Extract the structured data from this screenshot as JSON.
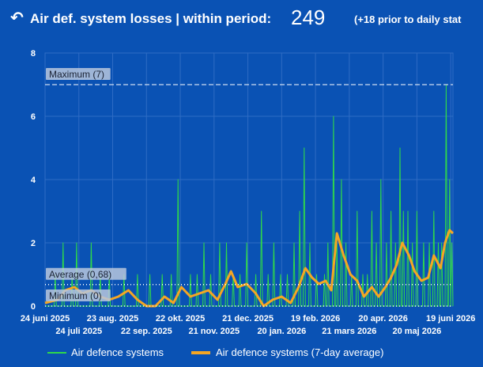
{
  "header": {
    "back_icon": "↶",
    "title": "Air def. system losses | within period:",
    "total": "249",
    "prior_note": "(+18 prior to daily stat"
  },
  "colors": {
    "background": "#0a52b4",
    "daily_line": "#2fd84a",
    "avg_line": "#f5a623",
    "grid": "#2f6cc4"
  },
  "chart_data": {
    "type": "line",
    "x_start": "2025-06-24",
    "x_end": "2026-06-21",
    "y_range": [
      0,
      8
    ],
    "y_ticks": [
      "0",
      "2",
      "4",
      "6",
      "8"
    ],
    "x_ticks_upper": [
      {
        "date": "2025-06-24",
        "label": "24 juni 2025"
      },
      {
        "date": "2025-08-23",
        "label": "23 aug. 2025"
      },
      {
        "date": "2025-10-22",
        "label": "22 okt. 2025"
      },
      {
        "date": "2025-12-21",
        "label": "21 dec. 2025"
      },
      {
        "date": "2026-02-19",
        "label": "19 feb. 2026"
      },
      {
        "date": "2026-04-20",
        "label": "20 apr. 2026"
      },
      {
        "date": "2026-06-19",
        "label": "19 juni 2026"
      }
    ],
    "x_ticks_lower": [
      {
        "date": "2025-07-24",
        "label": "24 juli 2025"
      },
      {
        "date": "2025-09-22",
        "label": "22 sep. 2025"
      },
      {
        "date": "2025-11-21",
        "label": "21 nov. 2025"
      },
      {
        "date": "2026-01-20",
        "label": "20 jan. 2026"
      },
      {
        "date": "2026-03-21",
        "label": "21 mars 2026"
      },
      {
        "date": "2026-05-20",
        "label": "20 maj 2026"
      }
    ],
    "reference_lines": [
      {
        "label": "Maximum (7)",
        "value": 7,
        "style": "dashed"
      },
      {
        "label": "Average (0,68)",
        "value": 0.68,
        "style": "dotted"
      },
      {
        "label": "Minimum (0)",
        "value": 0,
        "style": "dotted"
      }
    ],
    "series": [
      {
        "name": "Air defence systems",
        "points": [
          [
            "2025-07-03",
            1
          ],
          [
            "2025-07-10",
            2
          ],
          [
            "2025-07-18",
            1
          ],
          [
            "2025-07-22",
            2
          ],
          [
            "2025-08-04",
            2
          ],
          [
            "2025-08-12",
            1
          ],
          [
            "2025-08-20",
            1
          ],
          [
            "2025-09-02",
            1
          ],
          [
            "2025-09-14",
            1
          ],
          [
            "2025-09-25",
            1
          ],
          [
            "2025-10-06",
            1
          ],
          [
            "2025-10-14",
            1
          ],
          [
            "2025-10-20",
            4
          ],
          [
            "2025-10-31",
            1
          ],
          [
            "2025-11-06",
            1
          ],
          [
            "2025-11-12",
            2
          ],
          [
            "2025-11-18",
            1
          ],
          [
            "2025-11-26",
            2
          ],
          [
            "2025-12-02",
            2
          ],
          [
            "2025-12-08",
            1
          ],
          [
            "2025-12-14",
            1
          ],
          [
            "2025-12-20",
            2
          ],
          [
            "2025-12-28",
            1
          ],
          [
            "2026-01-02",
            3
          ],
          [
            "2026-01-08",
            1
          ],
          [
            "2026-01-13",
            2
          ],
          [
            "2026-01-19",
            1
          ],
          [
            "2026-01-25",
            1
          ],
          [
            "2026-01-31",
            2
          ],
          [
            "2026-02-05",
            3
          ],
          [
            "2026-02-09",
            5
          ],
          [
            "2026-02-14",
            2
          ],
          [
            "2026-02-20",
            1
          ],
          [
            "2026-02-27",
            1
          ],
          [
            "2026-03-02",
            2
          ],
          [
            "2026-03-07",
            6
          ],
          [
            "2026-03-10",
            2
          ],
          [
            "2026-03-14",
            4
          ],
          [
            "2026-03-18",
            2
          ],
          [
            "2026-03-23",
            1
          ],
          [
            "2026-03-28",
            3
          ],
          [
            "2026-04-02",
            1
          ],
          [
            "2026-04-06",
            1
          ],
          [
            "2026-04-10",
            3
          ],
          [
            "2026-04-14",
            2
          ],
          [
            "2026-04-18",
            4
          ],
          [
            "2026-04-23",
            2
          ],
          [
            "2026-04-27",
            3
          ],
          [
            "2026-05-01",
            2
          ],
          [
            "2026-05-05",
            5
          ],
          [
            "2026-05-08",
            3
          ],
          [
            "2026-05-12",
            3
          ],
          [
            "2026-05-16",
            2
          ],
          [
            "2026-05-20",
            3
          ],
          [
            "2026-05-26",
            2
          ],
          [
            "2026-05-31",
            2
          ],
          [
            "2026-06-04",
            3
          ],
          [
            "2026-06-08",
            2
          ],
          [
            "2026-06-11",
            2
          ],
          [
            "2026-06-15",
            7
          ],
          [
            "2026-06-18",
            4
          ],
          [
            "2026-06-20",
            2
          ]
        ]
      },
      {
        "name": "Air defence systems (7-day average)",
        "points": [
          [
            "2025-06-24",
            0.1
          ],
          [
            "2025-07-05",
            0.2
          ],
          [
            "2025-07-12",
            0.5
          ],
          [
            "2025-07-20",
            0.6
          ],
          [
            "2025-07-27",
            0.4
          ],
          [
            "2025-08-04",
            0.5
          ],
          [
            "2025-08-12",
            0.3
          ],
          [
            "2025-08-20",
            0.2
          ],
          [
            "2025-08-28",
            0.3
          ],
          [
            "2025-09-06",
            0.5
          ],
          [
            "2025-09-14",
            0.2
          ],
          [
            "2025-09-22",
            0
          ],
          [
            "2025-09-30",
            0
          ],
          [
            "2025-10-08",
            0.3
          ],
          [
            "2025-10-16",
            0.1
          ],
          [
            "2025-10-23",
            0.6
          ],
          [
            "2025-10-31",
            0.3
          ],
          [
            "2025-11-08",
            0.4
          ],
          [
            "2025-11-16",
            0.5
          ],
          [
            "2025-11-24",
            0.2
          ],
          [
            "2025-12-01",
            0.7
          ],
          [
            "2025-12-06",
            1.1
          ],
          [
            "2025-12-12",
            0.6
          ],
          [
            "2025-12-20",
            0.7
          ],
          [
            "2025-12-28",
            0.4
          ],
          [
            "2026-01-04",
            0
          ],
          [
            "2026-01-12",
            0.2
          ],
          [
            "2026-01-20",
            0.3
          ],
          [
            "2026-01-28",
            0.1
          ],
          [
            "2026-02-04",
            0.6
          ],
          [
            "2026-02-10",
            1.2
          ],
          [
            "2026-02-16",
            0.9
          ],
          [
            "2026-02-22",
            0.7
          ],
          [
            "2026-02-28",
            0.8
          ],
          [
            "2026-03-05",
            0.5
          ],
          [
            "2026-03-10",
            2.3
          ],
          [
            "2026-03-16",
            1.6
          ],
          [
            "2026-03-22",
            1
          ],
          [
            "2026-03-28",
            0.8
          ],
          [
            "2026-04-03",
            0.3
          ],
          [
            "2026-04-10",
            0.6
          ],
          [
            "2026-04-16",
            0.3
          ],
          [
            "2026-04-22",
            0.6
          ],
          [
            "2026-04-27",
            0.9
          ],
          [
            "2026-05-02",
            1.3
          ],
          [
            "2026-05-07",
            2
          ],
          [
            "2026-05-13",
            1.6
          ],
          [
            "2026-05-18",
            1.1
          ],
          [
            "2026-05-24",
            0.8
          ],
          [
            "2026-05-30",
            0.9
          ],
          [
            "2026-06-04",
            1.6
          ],
          [
            "2026-06-10",
            1.2
          ],
          [
            "2026-06-14",
            2
          ],
          [
            "2026-06-18",
            2.4
          ],
          [
            "2026-06-21",
            2.3
          ]
        ]
      }
    ],
    "legend_position": "bottom"
  }
}
